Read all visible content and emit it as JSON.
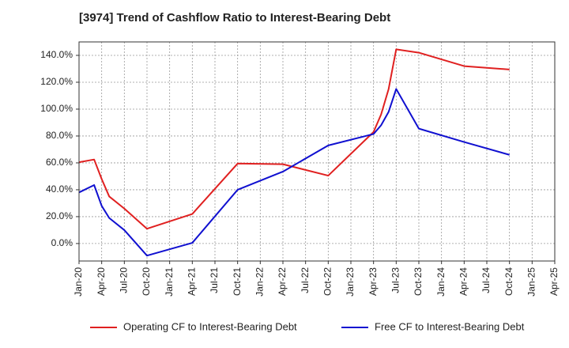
{
  "chart_data": {
    "type": "line",
    "title": "[3974]  Trend of Cashflow Ratio to Interest-Bearing Debt",
    "xlabel": "",
    "ylabel": "",
    "x_ticks": [
      "Jan-20",
      "Apr-20",
      "Jul-20",
      "Oct-20",
      "Jan-21",
      "Apr-21",
      "Jul-21",
      "Oct-21",
      "Jan-22",
      "Apr-22",
      "Jul-22",
      "Oct-22",
      "Jan-23",
      "Apr-23",
      "Jul-23",
      "Oct-23",
      "Jan-24",
      "Apr-24",
      "Jul-24",
      "Oct-24",
      "Jan-25",
      "Apr-25"
    ],
    "y_ticks": [
      "0.0%",
      "20.0%",
      "40.0%",
      "60.0%",
      "80.0%",
      "100.0%",
      "120.0%",
      "140.0%"
    ],
    "ylim": [
      -13,
      150
    ],
    "y_unit": "%",
    "grid": true,
    "legend_position": "bottom",
    "series": [
      {
        "name": "Operating CF to Interest-Bearing Debt",
        "color": "#e02020",
        "points": [
          [
            "Jan-20",
            60.5
          ],
          [
            "Mar-20",
            62.5
          ],
          [
            "Apr-20",
            48
          ],
          [
            "May-20",
            35
          ],
          [
            "Jul-20",
            26
          ],
          [
            "Oct-20",
            11
          ],
          [
            "Apr-21",
            22
          ],
          [
            "Oct-21",
            59.5
          ],
          [
            "Apr-22",
            59
          ],
          [
            "Oct-22",
            50.5
          ],
          [
            "Apr-23",
            83
          ],
          [
            "May-23",
            96
          ],
          [
            "Jun-23",
            115
          ],
          [
            "Jul-23",
            144.5
          ],
          [
            "Oct-23",
            142
          ],
          [
            "Apr-24",
            132
          ],
          [
            "Oct-24",
            129.5
          ]
        ]
      },
      {
        "name": "Free CF to Interest-Bearing Debt",
        "color": "#1010d0",
        "points": [
          [
            "Jan-20",
            38
          ],
          [
            "Mar-20",
            43.5
          ],
          [
            "Apr-20",
            28
          ],
          [
            "May-20",
            19
          ],
          [
            "Jul-20",
            10
          ],
          [
            "Oct-20",
            -9
          ],
          [
            "Apr-21",
            0.5
          ],
          [
            "Oct-21",
            40
          ],
          [
            "Apr-22",
            53.5
          ],
          [
            "Oct-22",
            73
          ],
          [
            "Apr-23",
            81.5
          ],
          [
            "May-23",
            88
          ],
          [
            "Jun-23",
            98
          ],
          [
            "Jul-23",
            115
          ],
          [
            "Oct-23",
            85.5
          ],
          [
            "Apr-24",
            75.5
          ],
          [
            "Oct-24",
            66
          ]
        ]
      }
    ]
  }
}
